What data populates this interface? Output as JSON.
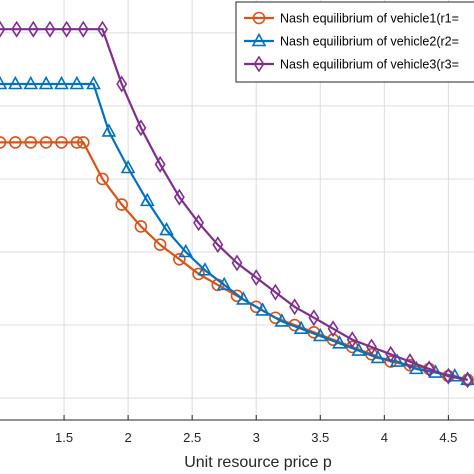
{
  "chart_data": {
    "type": "line",
    "xlabel": "Unit resource price p",
    "ylabel": "",
    "xlim": [
      1.0,
      4.7
    ],
    "ylim": [
      0.0,
      1.15
    ],
    "grid": true,
    "legend_position": "top-right",
    "xticks": [
      1.5,
      2,
      2.5,
      3,
      3.5,
      4,
      4.5
    ],
    "xtick_labels": [
      "1.5",
      "2",
      "2.5",
      "3",
      "3.5",
      "4",
      "4.5"
    ],
    "series": [
      {
        "name": "Nash equilibrium of vehicle1(r1=",
        "color": "#D95319",
        "marker": "circle",
        "x": [
          1.0,
          1.12,
          1.24,
          1.36,
          1.48,
          1.6,
          1.65,
          1.8,
          1.95,
          2.1,
          2.25,
          2.4,
          2.55,
          2.7,
          2.85,
          3.0,
          3.15,
          3.3,
          3.45,
          3.6,
          3.75,
          3.9,
          4.05,
          4.2,
          4.35,
          4.5,
          4.65
        ],
        "y": [
          0.76,
          0.76,
          0.76,
          0.76,
          0.76,
          0.76,
          0.76,
          0.66,
          0.59,
          0.53,
          0.48,
          0.44,
          0.4,
          0.37,
          0.34,
          0.31,
          0.28,
          0.26,
          0.24,
          0.22,
          0.2,
          0.18,
          0.16,
          0.15,
          0.14,
          0.12,
          0.11
        ]
      },
      {
        "name": "Nash equilibrium of vehicle2(r2=",
        "color": "#0072BD",
        "marker": "triangle",
        "x": [
          1.0,
          1.12,
          1.24,
          1.36,
          1.48,
          1.6,
          1.73,
          1.85,
          2.0,
          2.15,
          2.3,
          2.45,
          2.6,
          2.75,
          2.9,
          3.05,
          3.2,
          3.35,
          3.5,
          3.65,
          3.8,
          3.95,
          4.1,
          4.25,
          4.4,
          4.55,
          4.65
        ],
        "y": [
          0.92,
          0.92,
          0.92,
          0.92,
          0.92,
          0.92,
          0.92,
          0.79,
          0.69,
          0.6,
          0.52,
          0.46,
          0.41,
          0.37,
          0.33,
          0.3,
          0.27,
          0.25,
          0.23,
          0.21,
          0.19,
          0.17,
          0.16,
          0.14,
          0.13,
          0.12,
          0.11
        ]
      },
      {
        "name": "Nash equilibrium of vehicle3(r3=",
        "color": "#7E2F8E",
        "marker": "diamond",
        "x": [
          1.0,
          1.13,
          1.26,
          1.39,
          1.52,
          1.65,
          1.8,
          1.95,
          2.1,
          2.25,
          2.4,
          2.55,
          2.7,
          2.85,
          3.0,
          3.15,
          3.3,
          3.45,
          3.6,
          3.75,
          3.9,
          4.05,
          4.2,
          4.35,
          4.5,
          4.65
        ],
        "y": [
          1.07,
          1.07,
          1.07,
          1.07,
          1.07,
          1.07,
          1.07,
          0.92,
          0.8,
          0.7,
          0.61,
          0.54,
          0.48,
          0.43,
          0.39,
          0.35,
          0.31,
          0.28,
          0.25,
          0.22,
          0.2,
          0.18,
          0.16,
          0.14,
          0.12,
          0.11
        ]
      }
    ]
  }
}
